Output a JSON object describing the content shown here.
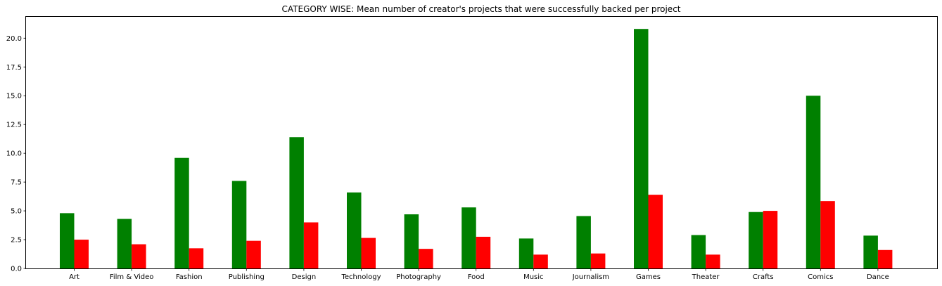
{
  "chart_data": {
    "type": "bar",
    "title": "CATEGORY WISE: Mean number of creator's projects that were successfully backed per project",
    "xlabel": "",
    "ylabel": "",
    "categories": [
      "Art",
      "Film & Video",
      "Fashion",
      "Publishing",
      "Design",
      "Technology",
      "Photography",
      "Food",
      "Music",
      "Journalism",
      "Games",
      "Theater",
      "Crafts",
      "Comics",
      "Dance"
    ],
    "series": [
      {
        "color": "#008000",
        "values": [
          4.8,
          4.3,
          9.6,
          7.6,
          11.4,
          6.6,
          4.7,
          5.3,
          2.6,
          4.55,
          20.8,
          2.9,
          4.9,
          15.0,
          2.85
        ]
      },
      {
        "color": "#ff0000",
        "values": [
          2.5,
          2.1,
          1.75,
          2.4,
          4.0,
          2.65,
          1.7,
          2.75,
          1.2,
          1.3,
          6.4,
          1.2,
          5.0,
          5.85,
          1.6
        ]
      }
    ],
    "ylim": [
      0,
      21.85
    ],
    "yticks": [
      "0.0",
      "2.5",
      "5.0",
      "7.5",
      "10.0",
      "12.5",
      "15.0",
      "17.5",
      "20.0"
    ],
    "grid": false,
    "legend": "none"
  }
}
